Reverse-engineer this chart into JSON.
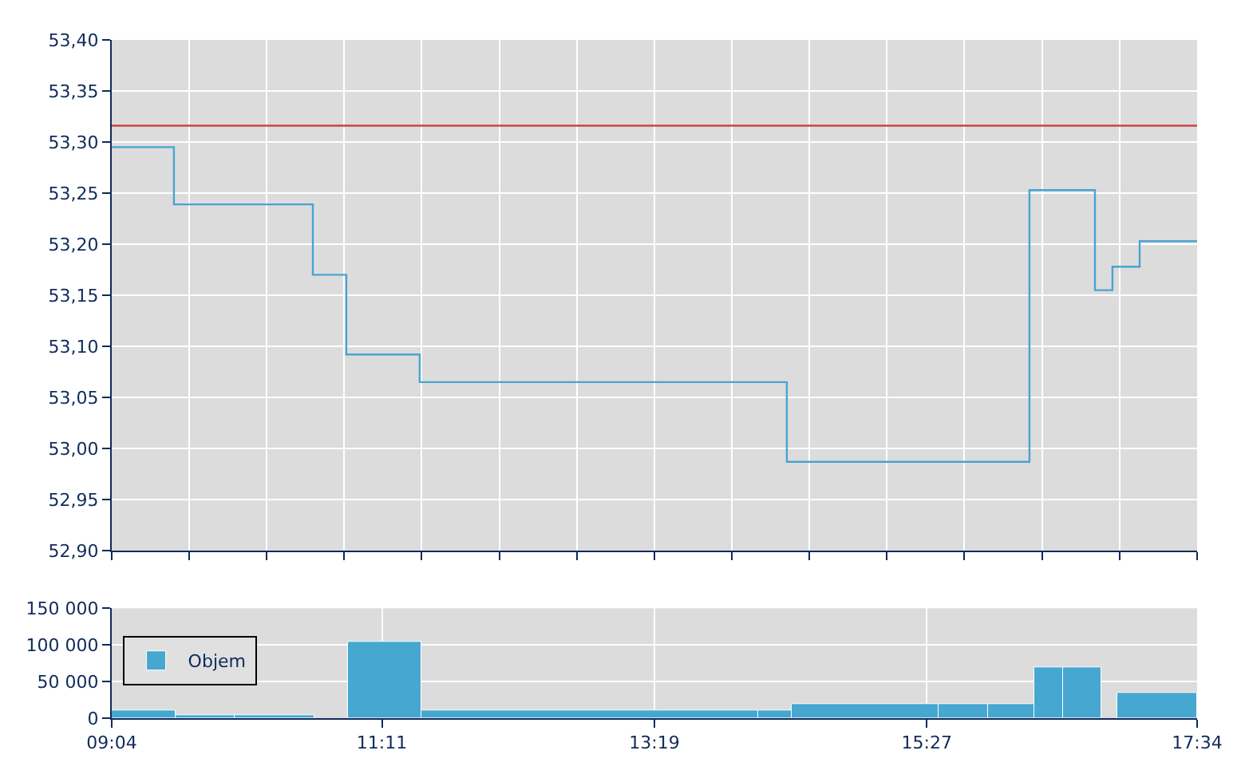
{
  "chart_data": [
    {
      "type": "step",
      "x": [
        9.067,
        9.554,
        10.642,
        10.904,
        11.479,
        14.354,
        16.254,
        16.767,
        16.904,
        17.117,
        17.567
      ],
      "series": [
        {
          "color": "#4aa3cf",
          "values": [
            53.295,
            53.239,
            53.17,
            53.092,
            53.065,
            52.987,
            53.253,
            53.155,
            53.178,
            53.203,
            53.203
          ]
        }
      ],
      "xlim": [
        9.067,
        17.567
      ],
      "xticks": [
        {
          "value": 9.067,
          "label": null
        },
        {
          "value": 9.674,
          "label": null
        },
        {
          "value": 10.281,
          "label": null
        },
        {
          "value": 10.888,
          "label": null
        },
        {
          "value": 11.495,
          "label": null
        },
        {
          "value": 12.102,
          "label": null
        },
        {
          "value": 12.709,
          "label": null
        },
        {
          "value": 13.317,
          "label": null
        },
        {
          "value": 13.924,
          "label": null
        },
        {
          "value": 14.531,
          "label": null
        },
        {
          "value": 15.138,
          "label": null
        },
        {
          "value": 15.745,
          "label": null
        },
        {
          "value": 16.352,
          "label": null
        },
        {
          "value": 16.959,
          "label": null
        },
        {
          "value": 17.567,
          "label": null
        }
      ],
      "ylim": [
        52.9,
        53.4
      ],
      "yticks": [
        {
          "value": 52.9,
          "label": "52,90"
        },
        {
          "value": 52.95,
          "label": "52,95"
        },
        {
          "value": 53.0,
          "label": "53,00"
        },
        {
          "value": 53.05,
          "label": "53,05"
        },
        {
          "value": 53.1,
          "label": "53,10"
        },
        {
          "value": 53.15,
          "label": "53,15"
        },
        {
          "value": 53.2,
          "label": "53,20"
        },
        {
          "value": 53.25,
          "label": "53,25"
        },
        {
          "value": 53.3,
          "label": "53,30"
        },
        {
          "value": 53.35,
          "label": "53,35"
        },
        {
          "value": 53.4,
          "label": "53,40"
        }
      ],
      "ref_lines": [
        {
          "axis": "y",
          "value": 53.316,
          "color": "#cc4444"
        }
      ],
      "grid": true,
      "tick_labels": "y",
      "legend": false
    },
    {
      "type": "bar",
      "x": [
        9.317,
        9.798,
        10.342,
        10.786,
        11.205,
        12.811,
        14.261,
        14.967,
        15.736,
        16.111,
        16.405,
        16.667,
        16.88,
        17.255
      ],
      "series": [
        {
          "name": "Objem",
          "color": "#46a7d0",
          "values": [
            10000,
            3000,
            3000,
            null,
            105000,
            10000,
            10000,
            20000,
            20000,
            20000,
            70000,
            70000,
            null,
            35000
          ]
        }
      ],
      "xlim": [
        9.067,
        17.567
      ],
      "xticks": [
        {
          "value": 9.067,
          "label": "09:04"
        },
        {
          "value": 11.183,
          "label": "11:11"
        },
        {
          "value": 13.317,
          "label": "13:19"
        },
        {
          "value": 15.45,
          "label": "15:27"
        },
        {
          "value": 17.567,
          "label": "17:34"
        }
      ],
      "ylim": [
        0,
        150000
      ],
      "yticks": [
        {
          "value": 0,
          "label": "0"
        },
        {
          "value": 50000,
          "label": "50 000"
        },
        {
          "value": 100000,
          "label": "100 000"
        },
        {
          "value": 150000,
          "label": "150 000"
        }
      ],
      "grid": true,
      "legend": "top left"
    }
  ]
}
